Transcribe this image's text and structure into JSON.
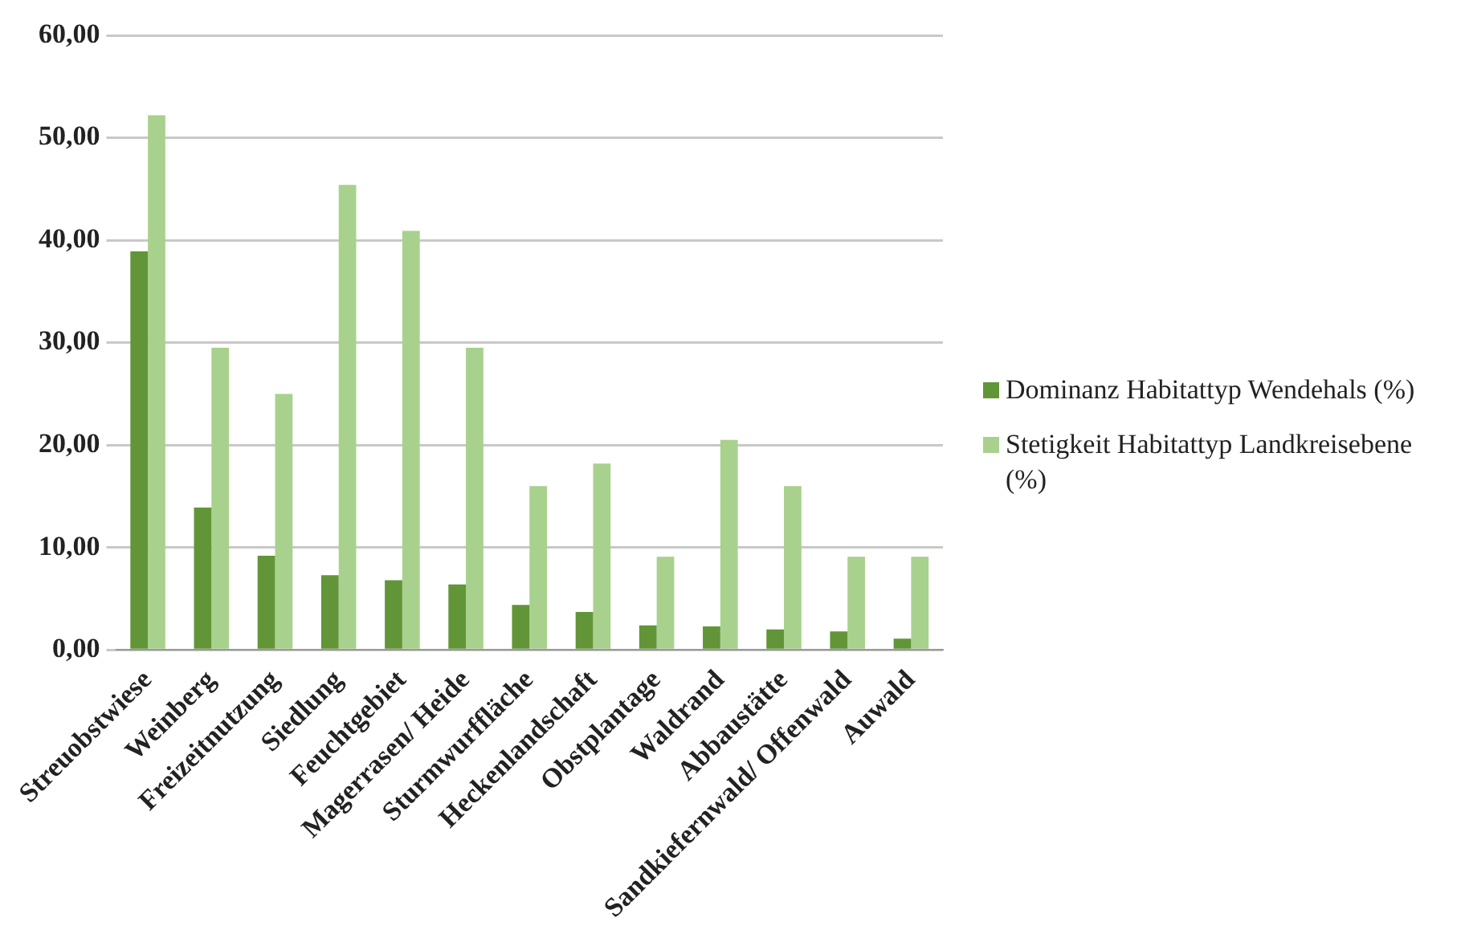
{
  "chart_data": {
    "type": "bar",
    "categories": [
      "Streuobstwiese",
      "Weinberg",
      "Freizeitnutzung",
      "Siedlung",
      "Feuchtgebiet",
      "Magerrasen/ Heide",
      "Sturmwurffläche",
      "Heckenlandschaft",
      "Obstplantage",
      "Waldrand",
      "Abbaustätte",
      "Sandkiefernwald/ Offenwald",
      "Auwald"
    ],
    "series": [
      {
        "name": "Dominanz Habitattyp Wendehals (%)",
        "color": "#629538",
        "values": [
          38.9,
          13.9,
          9.2,
          7.3,
          6.8,
          6.4,
          4.4,
          3.7,
          2.4,
          2.3,
          2.0,
          1.8,
          1.1
        ]
      },
      {
        "name": "Stetigkeit Habitattyp Landkreisebene (%)",
        "color": "#a9d18e",
        "values": [
          52.2,
          29.5,
          25.0,
          45.4,
          40.9,
          29.5,
          16.0,
          18.2,
          9.1,
          20.5,
          16.0,
          9.1,
          9.1
        ]
      }
    ],
    "ylim": [
      0,
      60
    ],
    "yticks": [
      {
        "value": 0,
        "label": "0,00"
      },
      {
        "value": 10,
        "label": "10,00"
      },
      {
        "value": 20,
        "label": "20,00"
      },
      {
        "value": 30,
        "label": "30,00"
      },
      {
        "value": 40,
        "label": "40,00"
      },
      {
        "value": 50,
        "label": "50,00"
      },
      {
        "value": 60,
        "label": "60,00"
      }
    ],
    "grid": "y",
    "legend": "right"
  }
}
